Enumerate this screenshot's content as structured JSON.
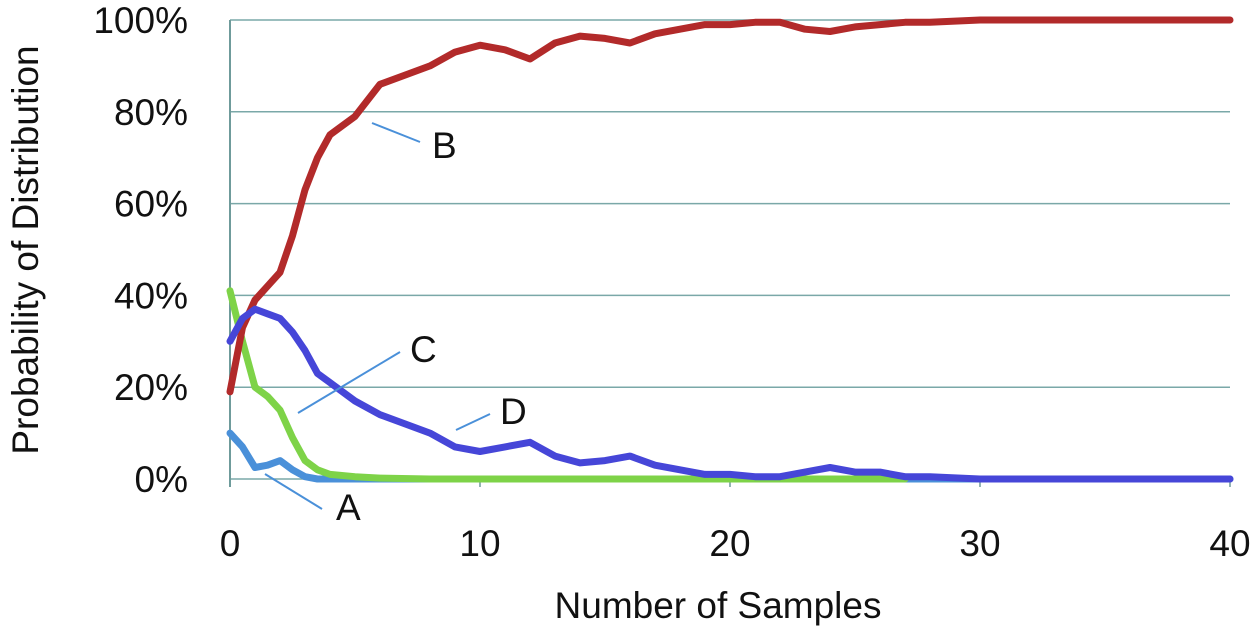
{
  "chart_data": {
    "type": "line",
    "title": "",
    "xlabel": "Number of Samples",
    "ylabel": "Probability of Distribution",
    "xlim": [
      0,
      40
    ],
    "ylim": [
      0,
      100
    ],
    "x_ticks": [
      "0",
      "10",
      "20",
      "30",
      "40"
    ],
    "y_ticks": [
      "0%",
      "20%",
      "40%",
      "60%",
      "80%",
      "100%"
    ],
    "grid": "horizontal",
    "legend": "none",
    "series": [
      {
        "name": "A",
        "color": "#4a90d9",
        "x": [
          0,
          0.5,
          1,
          1.5,
          2,
          2.5,
          3,
          3.5,
          4,
          5,
          10,
          20,
          40
        ],
        "y": [
          10,
          7,
          2.5,
          3,
          4,
          2,
          0.5,
          0,
          0,
          0,
          0,
          0,
          0
        ]
      },
      {
        "name": "B",
        "color": "#b22a2a",
        "x": [
          0,
          0.5,
          1,
          1.5,
          2,
          2.5,
          3,
          3.5,
          4,
          5,
          6,
          7,
          8,
          9,
          10,
          11,
          12,
          13,
          14,
          15,
          16,
          17,
          18,
          19,
          20,
          21,
          22,
          23,
          24,
          25,
          26,
          27,
          28,
          30,
          32,
          34,
          36,
          38,
          40
        ],
        "y": [
          19,
          33,
          39,
          42,
          45,
          53,
          63,
          70,
          75,
          79,
          86,
          88,
          90,
          93,
          94.5,
          93.5,
          91.5,
          95,
          96.5,
          96,
          95,
          97,
          98,
          99,
          99,
          99.5,
          99.5,
          98,
          97.5,
          98.5,
          99,
          99.5,
          99.5,
          100,
          100,
          100,
          100,
          100,
          100
        ]
      },
      {
        "name": "C",
        "color": "#7ed348",
        "x": [
          0,
          0.5,
          1,
          1.5,
          2,
          2.5,
          3,
          3.5,
          4,
          5,
          6,
          8,
          10,
          15,
          20,
          25,
          27
        ],
        "y": [
          41,
          30,
          20,
          18,
          15,
          9,
          4,
          2,
          1,
          0.5,
          0.2,
          0,
          0,
          0,
          0,
          0,
          0
        ]
      },
      {
        "name": "D",
        "color": "#4646d8",
        "x": [
          0,
          0.5,
          1,
          1.5,
          2,
          2.5,
          3,
          3.5,
          4,
          5,
          6,
          7,
          8,
          9,
          10,
          11,
          12,
          13,
          14,
          15,
          16,
          17,
          18,
          19,
          20,
          21,
          22,
          23,
          24,
          25,
          26,
          27,
          28,
          30,
          35,
          40
        ],
        "y": [
          30,
          35,
          37,
          36,
          35,
          32,
          28,
          23,
          21,
          17,
          14,
          12,
          10,
          7,
          6,
          7,
          8,
          5,
          3.5,
          4,
          5,
          3,
          2,
          1,
          1,
          0.5,
          0.5,
          1.5,
          2.5,
          1.5,
          1.5,
          0.5,
          0.5,
          0,
          0,
          0
        ]
      }
    ],
    "annotations": [
      {
        "text": "A",
        "series": "A"
      },
      {
        "text": "B",
        "series": "B"
      },
      {
        "text": "C",
        "series": "C"
      },
      {
        "text": "D",
        "series": "D"
      }
    ],
    "colors": {
      "grid": "#7aa8a8",
      "axis": "#6f9b9b",
      "leader": "#4a90d9"
    }
  }
}
